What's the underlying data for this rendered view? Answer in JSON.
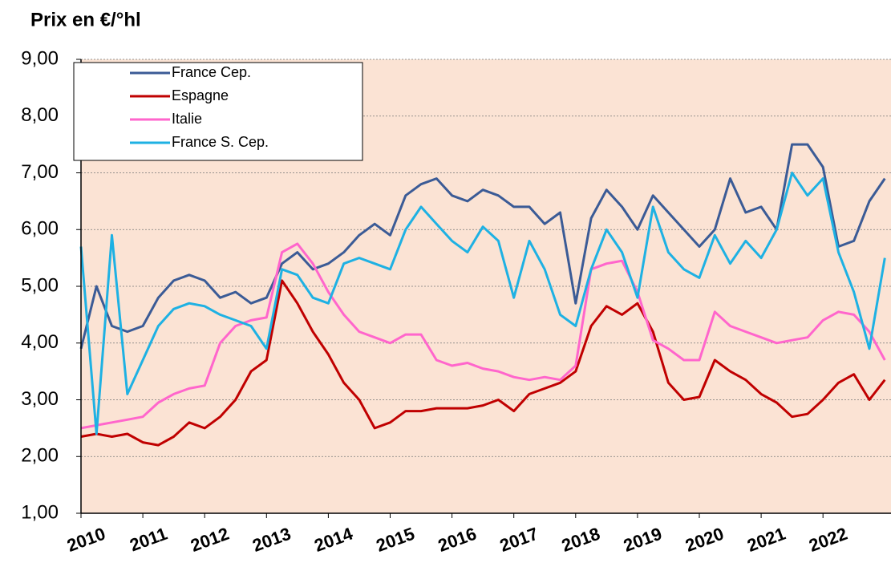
{
  "chart_data": {
    "type": "line",
    "title": "Prix en €/°hl",
    "x": [
      2010,
      2010.25,
      2010.5,
      2010.75,
      2011,
      2011.25,
      2011.5,
      2011.75,
      2012,
      2012.25,
      2012.5,
      2012.75,
      2013,
      2013.25,
      2013.5,
      2013.75,
      2014,
      2014.25,
      2014.5,
      2014.75,
      2015,
      2015.25,
      2015.5,
      2015.75,
      2016,
      2016.25,
      2016.5,
      2016.75,
      2017,
      2017.25,
      2017.5,
      2017.75,
      2018,
      2018.25,
      2018.5,
      2018.75,
      2019,
      2019.25,
      2019.5,
      2019.75,
      2020,
      2020.25,
      2020.5,
      2020.75,
      2021,
      2021.25,
      2021.5,
      2021.75,
      2022,
      2022.25,
      2022.5,
      2022.75,
      2023
    ],
    "series": [
      {
        "name": "France Cep.",
        "color": "#3b5b96",
        "values": [
          3.9,
          5.0,
          4.3,
          4.2,
          4.3,
          4.8,
          5.1,
          5.2,
          5.1,
          4.8,
          4.9,
          4.7,
          4.8,
          5.4,
          5.6,
          5.3,
          5.4,
          5.6,
          5.9,
          6.1,
          5.9,
          6.6,
          6.8,
          6.9,
          6.6,
          6.5,
          6.7,
          6.6,
          6.4,
          6.4,
          6.1,
          6.3,
          4.7,
          6.2,
          6.7,
          6.4,
          6.0,
          6.6,
          6.3,
          6.0,
          5.7,
          6.0,
          6.9,
          6.3,
          6.4,
          6.0,
          7.5,
          7.5,
          7.1,
          5.7,
          5.8,
          6.5,
          6.9
        ]
      },
      {
        "name": "Espagne",
        "color": "#c00000",
        "values": [
          2.35,
          2.4,
          2.35,
          2.4,
          2.25,
          2.2,
          2.35,
          2.6,
          2.5,
          2.7,
          3.0,
          3.5,
          3.7,
          5.1,
          4.7,
          4.2,
          3.8,
          3.3,
          3.0,
          2.5,
          2.6,
          2.8,
          2.8,
          2.85,
          2.85,
          2.85,
          2.9,
          3.0,
          2.8,
          3.1,
          3.2,
          3.3,
          3.5,
          4.3,
          4.65,
          4.5,
          4.7,
          4.2,
          3.3,
          3.0,
          3.05,
          3.7,
          3.5,
          3.35,
          3.1,
          2.95,
          2.7,
          2.75,
          3.0,
          3.3,
          3.45,
          3.0,
          3.35
        ]
      },
      {
        "name": "Italie",
        "color": "#ff66cc",
        "values": [
          2.5,
          2.55,
          2.6,
          2.65,
          2.7,
          2.95,
          3.1,
          3.2,
          3.25,
          4.0,
          4.3,
          4.4,
          4.45,
          5.6,
          5.75,
          5.4,
          4.9,
          4.5,
          4.2,
          4.1,
          4.0,
          4.15,
          4.15,
          3.7,
          3.6,
          3.65,
          3.55,
          3.5,
          3.4,
          3.35,
          3.4,
          3.35,
          3.6,
          5.3,
          5.4,
          5.45,
          4.9,
          4.05,
          3.9,
          3.7,
          3.7,
          4.55,
          4.3,
          4.2,
          4.1,
          4.0,
          4.05,
          4.1,
          4.4,
          4.55,
          4.5,
          4.2,
          3.7
        ]
      },
      {
        "name": "France S. Cep.",
        "color": "#1eb1e3",
        "values": [
          5.7,
          2.4,
          5.9,
          3.1,
          3.7,
          4.3,
          4.6,
          4.7,
          4.65,
          4.5,
          4.4,
          4.3,
          3.9,
          5.3,
          5.2,
          4.8,
          4.7,
          5.4,
          5.5,
          5.4,
          5.3,
          6.0,
          6.4,
          6.1,
          5.8,
          5.6,
          6.05,
          5.8,
          4.8,
          5.8,
          5.3,
          4.5,
          4.3,
          5.3,
          6.0,
          5.6,
          4.8,
          6.4,
          5.6,
          5.3,
          5.15,
          5.9,
          5.4,
          5.8,
          5.5,
          6.0,
          7.0,
          6.6,
          6.9,
          5.6,
          4.9,
          3.9,
          5.5
        ]
      }
    ],
    "xlim": [
      2010,
      2023.1
    ],
    "xticks": [
      2010,
      2011,
      2012,
      2013,
      2014,
      2015,
      2016,
      2017,
      2018,
      2019,
      2020,
      2021,
      2022
    ],
    "ylim": [
      1,
      9
    ],
    "yticks": [
      {
        "value": 1,
        "label": "1,00"
      },
      {
        "value": 2,
        "label": "2,00"
      },
      {
        "value": 3,
        "label": "3,00"
      },
      {
        "value": 4,
        "label": "4,00"
      },
      {
        "value": 5,
        "label": "5,00"
      },
      {
        "value": 6,
        "label": "6,00"
      },
      {
        "value": 7,
        "label": "7,00"
      },
      {
        "value": 8,
        "label": "8,00"
      },
      {
        "value": 9,
        "label": "9,00"
      }
    ],
    "grid": true,
    "legend": "top-left"
  }
}
